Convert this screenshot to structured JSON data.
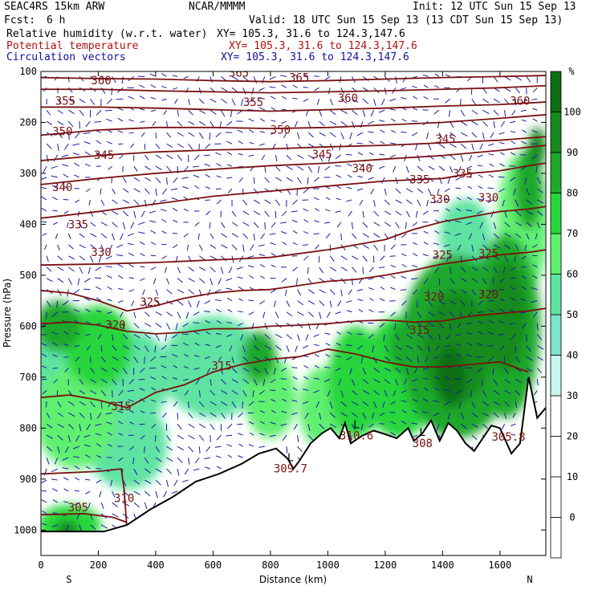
{
  "header": {
    "model": "SEAC4RS 15km ARW",
    "org": "NCAR/MMMM",
    "init": "Init: 12 UTC Sun 15 Sep 13",
    "fcst_label": "Fcst:",
    "fcst_value": "6 h",
    "valid": "Valid: 18 UTC Sun 15 Sep 13 (13 CDT Sun 15 Sep 13)",
    "field1": "Relative humidity (w.r.t. water)",
    "field1_xy": "XY= 105.3, 31.6 to 124.3,147.6",
    "field2": "Potential temperature",
    "field2_xy": "XY= 105.3, 31.6 to 124.3,147.6",
    "field3": "Circulation vectors",
    "field3_xy": "XY= 105.3, 31.6 to 124.3,147.6",
    "colors": {
      "field1": "#000000",
      "field2": "#b01010",
      "field3": "#1010a0"
    }
  },
  "chart_data": {
    "type": "heatmap",
    "xlabel": "Distance (km)",
    "ylabel": "Pressure (hPa)",
    "xlim": [
      0,
      1760
    ],
    "ylim": [
      1050,
      100
    ],
    "x_ticks": [
      0,
      200,
      400,
      600,
      800,
      1000,
      1200,
      1400,
      1600
    ],
    "y_ticks": [
      100,
      200,
      300,
      400,
      500,
      600,
      700,
      800,
      900,
      1000
    ],
    "x_end_labels": {
      "left": "S",
      "right": "N"
    },
    "colorbar": {
      "unit": "%",
      "levels": [
        0,
        10,
        20,
        30,
        40,
        50,
        60,
        70,
        80,
        90,
        100
      ],
      "colors": [
        "#ffffff",
        "#ffffff",
        "#ffffff",
        "#ffffff",
        "#c8f5ec",
        "#7de3cd",
        "#5ee3a0",
        "#60f070",
        "#26d63a",
        "#1fa82c",
        "#178a1f",
        "#0d6e12"
      ]
    },
    "terrain": {
      "x": [
        0,
        120,
        220,
        300,
        380,
        460,
        540,
        620,
        700,
        760,
        820,
        860,
        880,
        900,
        940,
        980,
        1010,
        1040,
        1060,
        1080,
        1120,
        1160,
        1200,
        1240,
        1280,
        1300,
        1330,
        1360,
        1390,
        1420,
        1450,
        1480,
        1510,
        1540,
        1570,
        1600,
        1640,
        1670,
        1700,
        1730,
        1760
      ],
      "p": [
        1003,
        1003,
        1003,
        990,
        960,
        935,
        905,
        890,
        870,
        850,
        840,
        860,
        880,
        865,
        830,
        810,
        800,
        820,
        790,
        830,
        815,
        805,
        812,
        820,
        800,
        825,
        810,
        785,
        825,
        790,
        805,
        830,
        845,
        820,
        795,
        800,
        850,
        830,
        700,
        780,
        760
      ]
    },
    "theta_contours": [
      {
        "level": 305,
        "x": [
          0,
          150,
          250,
          300
        ],
        "p": [
          970,
          968,
          975,
          985
        ]
      },
      {
        "level": 310,
        "x": [
          0,
          200,
          280,
          290,
          300
        ],
        "p": [
          890,
          885,
          880,
          920,
          1000
        ]
      },
      {
        "level": 315,
        "x": [
          0,
          100,
          200,
          300,
          400,
          500,
          600,
          700,
          800,
          900,
          1000,
          1100,
          1200,
          1300,
          1400,
          1500,
          1600,
          1700
        ],
        "p": [
          740,
          735,
          745,
          760,
          730,
          715,
          690,
          675,
          665,
          660,
          645,
          655,
          670,
          680,
          680,
          675,
          670,
          690
        ]
      },
      {
        "level": 320,
        "x": [
          0,
          100,
          200,
          300,
          400,
          500,
          600,
          700,
          800,
          900,
          1000,
          1100,
          1200,
          1300,
          1400,
          1500,
          1600,
          1700,
          1760
        ],
        "p": [
          595,
          592,
          598,
          610,
          615,
          612,
          605,
          605,
          600,
          598,
          595,
          590,
          588,
          592,
          590,
          580,
          575,
          570,
          565
        ]
      },
      {
        "level": 325,
        "x": [
          0,
          100,
          200,
          300,
          400,
          500,
          600,
          700,
          800,
          900,
          1000,
          1100,
          1200,
          1300,
          1400,
          1500,
          1600,
          1700,
          1760
        ],
        "p": [
          530,
          535,
          550,
          570,
          560,
          545,
          535,
          530,
          528,
          520,
          512,
          508,
          500,
          490,
          478,
          470,
          460,
          455,
          450
        ]
      },
      {
        "level": 330,
        "x": [
          0,
          200,
          400,
          600,
          800,
          1000,
          1200,
          1300,
          1400,
          1500,
          1600,
          1700,
          1760
        ],
        "p": [
          480,
          478,
          475,
          470,
          465,
          450,
          430,
          410,
          395,
          385,
          375,
          370,
          365
        ]
      },
      {
        "level": 335,
        "x": [
          0,
          200,
          400,
          600,
          800,
          1000,
          1200,
          1400,
          1500,
          1600,
          1700,
          1760
        ],
        "p": [
          388,
          375,
          360,
          345,
          335,
          325,
          315,
          310,
          300,
          295,
          285,
          280
        ]
      },
      {
        "level": 340,
        "x": [
          0,
          200,
          400,
          600,
          800,
          1000,
          1200,
          1400,
          1600,
          1760
        ],
        "p": [
          322,
          310,
          300,
          292,
          285,
          280,
          272,
          265,
          255,
          245
        ]
      },
      {
        "level": 345,
        "x": [
          0,
          200,
          400,
          600,
          800,
          1000,
          1200,
          1400,
          1600,
          1760
        ],
        "p": [
          275,
          265,
          258,
          254,
          252,
          248,
          245,
          240,
          235,
          228
        ]
      },
      {
        "level": 350,
        "x": [
          0,
          200,
          400,
          600,
          800,
          1000,
          1200,
          1400,
          1600,
          1760
        ],
        "p": [
          225,
          215,
          210,
          210,
          212,
          210,
          205,
          200,
          192,
          185
        ]
      },
      {
        "level": 355,
        "x": [
          0,
          200,
          400,
          600,
          800,
          1000,
          1200,
          1400,
          1600,
          1760
        ],
        "p": [
          170,
          170,
          172,
          175,
          178,
          175,
          172,
          168,
          165,
          160
        ]
      },
      {
        "level": 360,
        "x": [
          0,
          200,
          400,
          600,
          800,
          1000,
          1200,
          1400,
          1600,
          1760
        ],
        "p": [
          135,
          135,
          138,
          140,
          142,
          140,
          138,
          135,
          132,
          128
        ]
      },
      {
        "level": 365,
        "x": [
          0,
          200,
          400,
          600,
          800,
          1000,
          1200,
          1400,
          1600,
          1760
        ],
        "p": [
          112,
          114,
          115,
          118,
          120,
          118,
          115,
          112,
          110,
          108
        ]
      }
    ],
    "contour_labels": [
      {
        "text": "360",
        "x": 210,
        "p": 125
      },
      {
        "text": "365",
        "x": 690,
        "p": 110
      },
      {
        "text": "365",
        "x": 900,
        "p": 120
      },
      {
        "text": "355",
        "x": 85,
        "p": 165
      },
      {
        "text": "355",
        "x": 740,
        "p": 168
      },
      {
        "text": "360",
        "x": 1070,
        "p": 160
      },
      {
        "text": "360",
        "x": 1670,
        "p": 165
      },
      {
        "text": "350",
        "x": 75,
        "p": 225
      },
      {
        "text": "350",
        "x": 835,
        "p": 222
      },
      {
        "text": "345",
        "x": 1410,
        "p": 240
      },
      {
        "text": "345",
        "x": 220,
        "p": 272
      },
      {
        "text": "345",
        "x": 980,
        "p": 270
      },
      {
        "text": "340",
        "x": 1120,
        "p": 298
      },
      {
        "text": "335",
        "x": 1320,
        "p": 320
      },
      {
        "text": "335",
        "x": 1470,
        "p": 308
      },
      {
        "text": "340",
        "x": 75,
        "p": 335
      },
      {
        "text": "330",
        "x": 1390,
        "p": 358
      },
      {
        "text": "330",
        "x": 1560,
        "p": 355
      },
      {
        "text": "335",
        "x": 130,
        "p": 408
      },
      {
        "text": "325",
        "x": 1400,
        "p": 468
      },
      {
        "text": "325",
        "x": 1560,
        "p": 465
      },
      {
        "text": "330",
        "x": 210,
        "p": 462
      },
      {
        "text": "320",
        "x": 1370,
        "p": 550
      },
      {
        "text": "320",
        "x": 1560,
        "p": 545
      },
      {
        "text": "325",
        "x": 380,
        "p": 560
      },
      {
        "text": "320",
        "x": 260,
        "p": 605
      },
      {
        "text": "315",
        "x": 1320,
        "p": 615
      },
      {
        "text": "315",
        "x": 630,
        "p": 685
      },
      {
        "text": "315",
        "x": 280,
        "p": 765
      },
      {
        "text": "305",
        "x": 130,
        "p": 963
      },
      {
        "text": "310",
        "x": 290,
        "p": 945
      }
    ],
    "lows": [
      {
        "letter": "L",
        "value": "309.7",
        "x": 870,
        "p": 865
      },
      {
        "letter": "L",
        "value": "310.6",
        "x": 1100,
        "p": 800
      },
      {
        "letter": "L",
        "value": "308",
        "x": 1330,
        "p": 815
      }
    ],
    "extra_labels": [
      {
        "text": "305.8",
        "x": 1630,
        "p": 825
      }
    ],
    "rh_blobs": [
      {
        "x": 80,
        "p": 680,
        "rx": 160,
        "ry": 120,
        "level": 50
      },
      {
        "x": 60,
        "p": 600,
        "rx": 80,
        "ry": 50,
        "level": 80
      },
      {
        "x": 200,
        "p": 640,
        "rx": 120,
        "ry": 80,
        "level": 70
      },
      {
        "x": 120,
        "p": 780,
        "rx": 140,
        "ry": 100,
        "level": 60
      },
      {
        "x": 100,
        "p": 990,
        "rx": 110,
        "ry": 40,
        "level": 70
      },
      {
        "x": 90,
        "p": 1000,
        "rx": 40,
        "ry": 20,
        "level": 90
      },
      {
        "x": 330,
        "p": 700,
        "rx": 120,
        "ry": 90,
        "level": 50
      },
      {
        "x": 300,
        "p": 830,
        "rx": 140,
        "ry": 90,
        "level": 50
      },
      {
        "x": 600,
        "p": 680,
        "rx": 180,
        "ry": 100,
        "level": 50
      },
      {
        "x": 760,
        "p": 660,
        "rx": 60,
        "ry": 50,
        "level": 80
      },
      {
        "x": 800,
        "p": 740,
        "rx": 90,
        "ry": 80,
        "level": 60
      },
      {
        "x": 980,
        "p": 760,
        "rx": 80,
        "ry": 80,
        "level": 60
      },
      {
        "x": 1100,
        "p": 710,
        "rx": 100,
        "ry": 110,
        "level": 70
      },
      {
        "x": 1250,
        "p": 700,
        "rx": 130,
        "ry": 120,
        "level": 70
      },
      {
        "x": 1300,
        "p": 640,
        "rx": 90,
        "ry": 60,
        "level": 80
      },
      {
        "x": 1450,
        "p": 640,
        "rx": 200,
        "ry": 180,
        "level": 80
      },
      {
        "x": 1450,
        "p": 640,
        "rx": 120,
        "ry": 110,
        "level": 90
      },
      {
        "x": 1430,
        "p": 700,
        "rx": 50,
        "ry": 60,
        "level": 100
      },
      {
        "x": 1620,
        "p": 600,
        "rx": 120,
        "ry": 180,
        "level": 80
      },
      {
        "x": 1620,
        "p": 580,
        "rx": 70,
        "ry": 110,
        "level": 90
      },
      {
        "x": 1680,
        "p": 400,
        "rx": 90,
        "ry": 140,
        "level": 60
      },
      {
        "x": 1700,
        "p": 330,
        "rx": 50,
        "ry": 80,
        "level": 80
      },
      {
        "x": 1730,
        "p": 250,
        "rx": 30,
        "ry": 40,
        "level": 90
      },
      {
        "x": 1480,
        "p": 420,
        "rx": 90,
        "ry": 70,
        "level": 50
      }
    ]
  }
}
